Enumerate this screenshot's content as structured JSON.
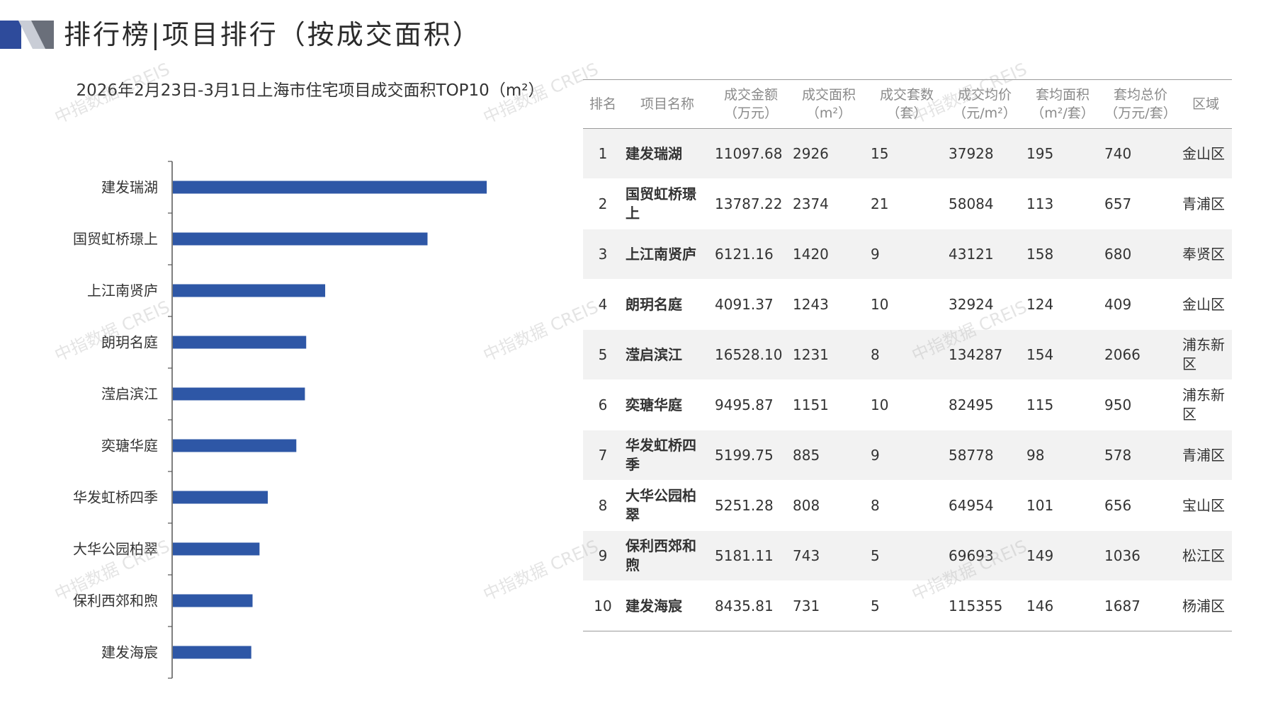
{
  "header": {
    "title": "排行榜|项目排行（按成交面积）"
  },
  "colors": {
    "bar": "#2e57a6",
    "logo_dark": "#2e4b9b",
    "logo_light": "#c9cdd6",
    "axis": "#555555"
  },
  "chart_data": {
    "type": "bar",
    "orientation": "horizontal",
    "title": "2026年2月23日-3月1日上海市住宅项目成交面积TOP10（m²）",
    "categories": [
      "建发瑞湖",
      "国贸虹桥璟上",
      "上江南贤庐",
      "朗玥名庭",
      "滢启滨江",
      "奕瑭华庭",
      "华发虹桥四季",
      "大华公园柏翠",
      "保利西郊和煦",
      "建发海宸"
    ],
    "values": [
      2926,
      2374,
      1420,
      1243,
      1231,
      1151,
      885,
      808,
      743,
      731
    ],
    "xlim": [
      0,
      3500
    ],
    "grid": false,
    "legend": "none"
  },
  "table": {
    "headers": [
      "排名",
      "项目名称",
      "成交金额\n（万元）",
      "成交面积\n（m²）",
      "成交套数\n（套）",
      "成交均价\n（元/m²）",
      "套均面积\n（m²/套）",
      "套均总价\n（万元/套）",
      "区域"
    ],
    "rows": [
      [
        "1",
        "建发瑞湖",
        "11097.68",
        "2926",
        "15",
        "37928",
        "195",
        "740",
        "金山区"
      ],
      [
        "2",
        "国贸虹桥璟上",
        "13787.22",
        "2374",
        "21",
        "58084",
        "113",
        "657",
        "青浦区"
      ],
      [
        "3",
        "上江南贤庐",
        "6121.16",
        "1420",
        "9",
        "43121",
        "158",
        "680",
        "奉贤区"
      ],
      [
        "4",
        "朗玥名庭",
        "4091.37",
        "1243",
        "10",
        "32924",
        "124",
        "409",
        "金山区"
      ],
      [
        "5",
        "滢启滨江",
        "16528.10",
        "1231",
        "8",
        "134287",
        "154",
        "2066",
        "浦东新区"
      ],
      [
        "6",
        "奕瑭华庭",
        "9495.87",
        "1151",
        "10",
        "82495",
        "115",
        "950",
        "浦东新区"
      ],
      [
        "7",
        "华发虹桥四季",
        "5199.75",
        "885",
        "9",
        "58778",
        "98",
        "578",
        "青浦区"
      ],
      [
        "8",
        "大华公园柏翠",
        "5251.28",
        "808",
        "8",
        "64954",
        "101",
        "656",
        "宝山区"
      ],
      [
        "9",
        "保利西郊和煦",
        "5181.11",
        "743",
        "5",
        "69693",
        "149",
        "1036",
        "松江区"
      ],
      [
        "10",
        "建发海宸",
        "8435.81",
        "731",
        "5",
        "115355",
        "146",
        "1687",
        "杨浦区"
      ]
    ]
  },
  "watermark": {
    "text": "中指数据 CREIS"
  }
}
